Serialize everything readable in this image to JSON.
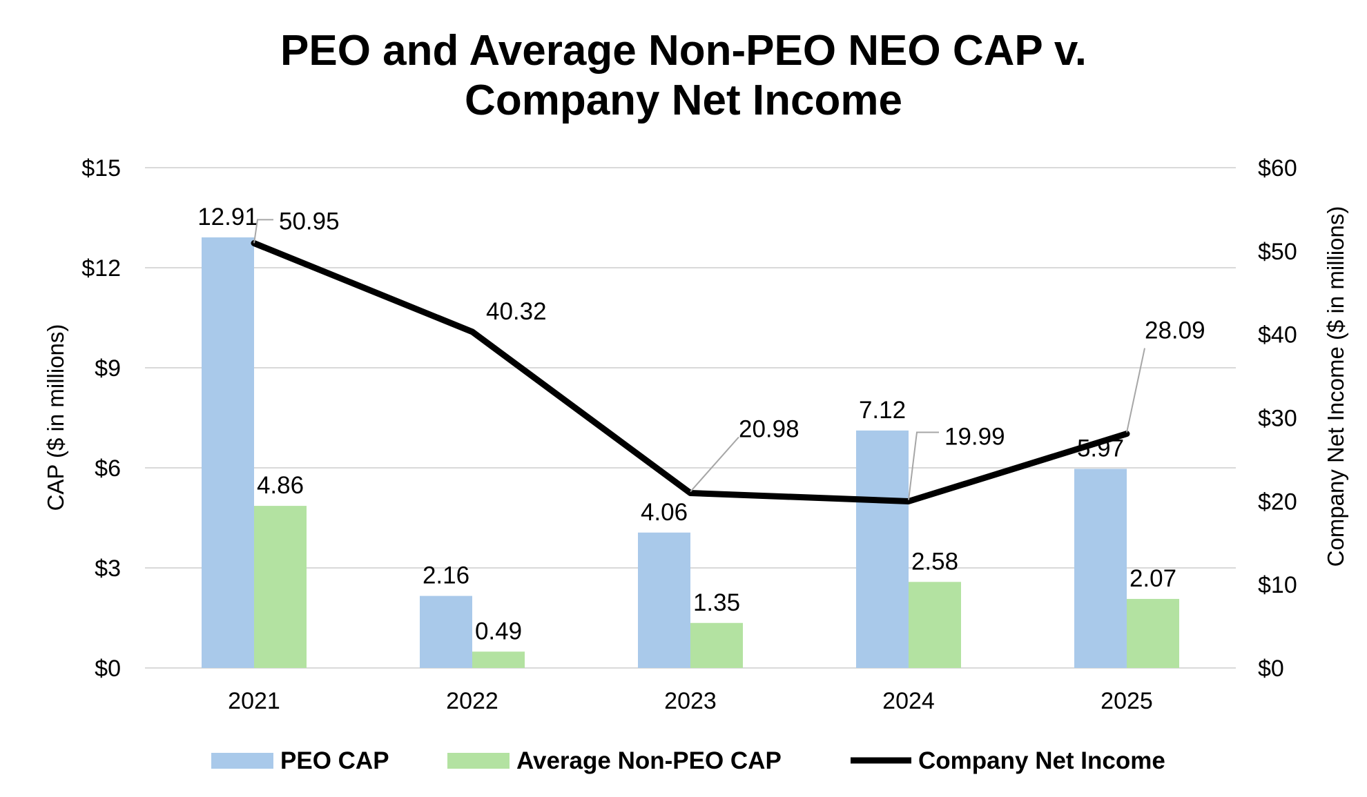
{
  "chart_data": {
    "type": "bar",
    "title_lines": [
      "PEO and Average Non-PEO NEO CAP v.",
      "Company Net Income"
    ],
    "categories": [
      "2021",
      "2022",
      "2023",
      "2024",
      "2025"
    ],
    "series": [
      {
        "name": "PEO CAP",
        "kind": "bar",
        "axis": "left",
        "color": "#a9c9ea",
        "values": [
          12.91,
          2.16,
          4.06,
          7.12,
          5.97
        ],
        "labels": [
          "12.91",
          "2.16",
          "4.06",
          "7.12",
          "5.97"
        ]
      },
      {
        "name": "Average Non-PEO CAP",
        "kind": "bar",
        "axis": "left",
        "color": "#b3e2a1",
        "values": [
          4.86,
          0.49,
          1.35,
          2.58,
          2.07
        ],
        "labels": [
          "4.86",
          "0.49",
          "1.35",
          "2.58",
          "2.07"
        ]
      },
      {
        "name": "Company Net Income",
        "kind": "line",
        "axis": "right",
        "color": "#000000",
        "values": [
          50.95,
          40.32,
          20.98,
          19.99,
          28.09
        ],
        "labels": [
          "50.95",
          "40.32",
          "20.98",
          "19.99",
          "28.09"
        ]
      }
    ],
    "ylabel": "CAP ($ in millions)",
    "y2label": "Company Net Income ($ in millions)",
    "ylim": [
      0,
      15
    ],
    "y2lim": [
      0,
      60
    ],
    "yticks": [
      "$0",
      "$3",
      "$6",
      "$9",
      "$12",
      "$15"
    ],
    "y2ticks": [
      "$0",
      "$10",
      "$20",
      "$30",
      "$40",
      "$50",
      "$60"
    ],
    "grid": true,
    "legend_position": "bottom"
  }
}
